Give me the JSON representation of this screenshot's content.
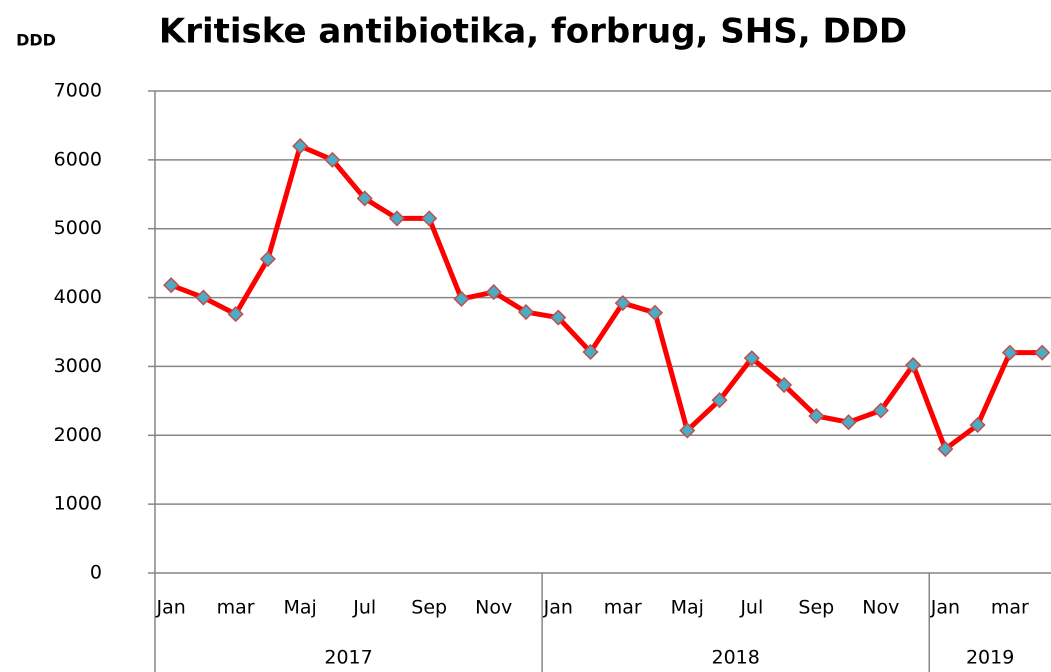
{
  "chart_data": {
    "type": "line",
    "title": "Kritiske antibiotika, forbrug, SHS, DDD",
    "y_label": "DDD",
    "categories": [
      "Jan",
      null,
      "mar",
      null,
      "Maj",
      null,
      "Jul",
      null,
      "Sep",
      null,
      "Nov",
      null,
      "Jan",
      null,
      "mar",
      null,
      "Maj",
      null,
      "Jul",
      null,
      "Sep",
      null,
      "Nov",
      null,
      "Jan",
      null,
      "mar",
      null
    ],
    "x_groups": [
      {
        "label": "2017",
        "span": 12
      },
      {
        "label": "2018",
        "span": 12
      },
      {
        "label": "2019",
        "span": 4
      }
    ],
    "values": [
      4180,
      4000,
      3760,
      4560,
      6200,
      6000,
      5440,
      5150,
      5150,
      3980,
      4080,
      3790,
      3710,
      3210,
      3920,
      3780,
      2070,
      2510,
      3120,
      2730,
      2280,
      2190,
      2360,
      3020,
      1800,
      2150,
      3200,
      3200
    ],
    "color": "#ff0000",
    "marker_color": "#4bacc6",
    "ylim": [
      0,
      7000
    ],
    "yticks": [
      0,
      1000,
      2000,
      3000,
      4000,
      5000,
      6000,
      7000
    ],
    "grid": true
  }
}
